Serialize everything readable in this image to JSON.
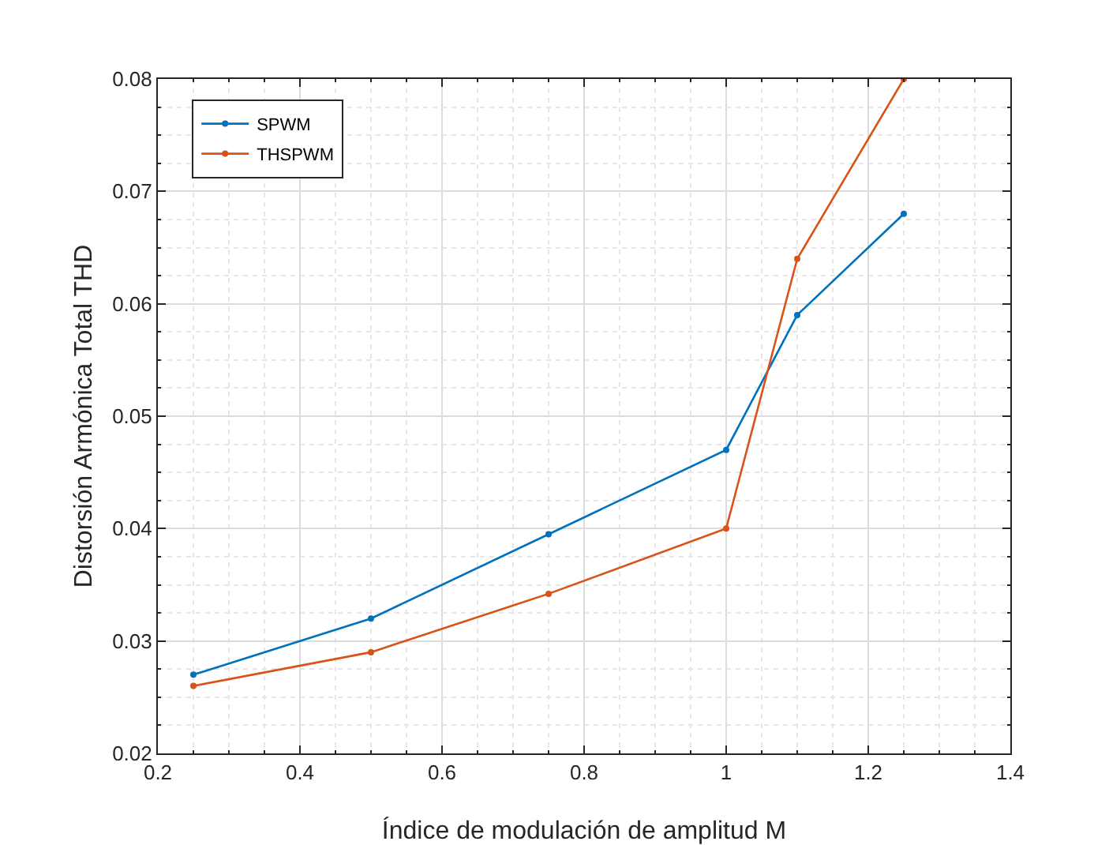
{
  "chart_data": {
    "type": "line",
    "xlabel": "Índice de modulación de amplitud M",
    "ylabel": "Distorsión Armónica Total THD",
    "x": [
      0.25,
      0.5,
      0.75,
      1,
      1.1,
      1.25
    ],
    "series": [
      {
        "name": "SPWM",
        "color": "#0072bd",
        "values": [
          0.027,
          0.032,
          0.0395,
          0.047,
          0.059,
          0.068
        ]
      },
      {
        "name": "THSPWM",
        "color": "#d95319",
        "values": [
          0.026,
          0.029,
          0.0342,
          0.04,
          0.064,
          0.08
        ]
      }
    ],
    "xlim": [
      0.2,
      1.4
    ],
    "xticks": [
      0.2,
      0.4,
      0.6,
      0.8,
      1,
      1.2,
      1.4
    ],
    "ylim": [
      0.02,
      0.08
    ],
    "yticks": [
      0.02,
      0.03,
      0.04,
      0.05,
      0.06,
      0.07,
      0.08
    ],
    "grid": true,
    "legend": "top left",
    "marker": "circle",
    "line_style": "solid"
  }
}
